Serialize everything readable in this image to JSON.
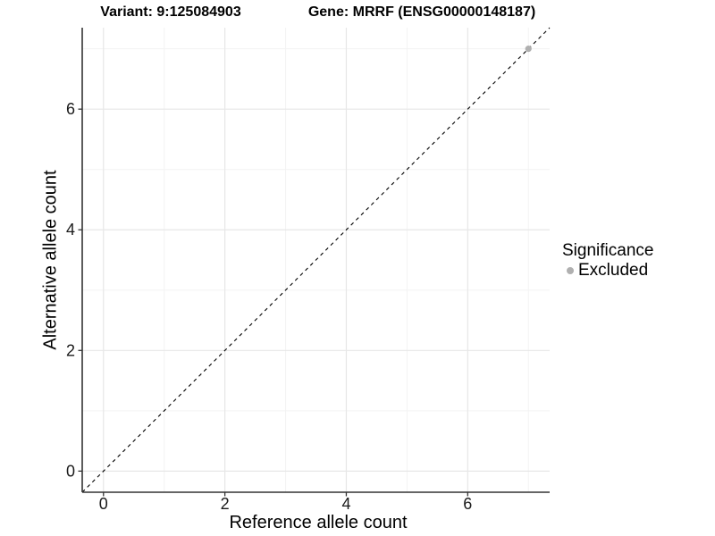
{
  "chart_data": {
    "type": "scatter",
    "title_left": "Variant: 9:125084903",
    "title_right": "Gene: MRRF (ENSG00000148187)",
    "xlabel": "Reference allele count",
    "ylabel": "Alternative allele count",
    "xlim": [
      -0.35,
      7.35
    ],
    "ylim": [
      -0.35,
      7.35
    ],
    "x_major_ticks": [
      0,
      2,
      4,
      6
    ],
    "y_major_ticks": [
      0,
      2,
      4,
      6
    ],
    "x_minor_ticks": [
      1,
      3,
      5,
      7
    ],
    "y_minor_ticks": [
      1,
      3,
      5,
      7
    ],
    "grid": "major+minor",
    "identity_line": {
      "style": "dashed",
      "color": "#000000",
      "slope": 1,
      "intercept": 0
    },
    "series": [
      {
        "name": "Excluded",
        "color": "#b0b0b0",
        "points": [
          {
            "x": 7,
            "y": 7
          }
        ]
      }
    ],
    "legend": {
      "title": "Significance",
      "position": "right",
      "entries": [
        {
          "label": "Excluded",
          "color": "#b0b0b0",
          "marker": "circle"
        }
      ]
    },
    "colors": {
      "grid_major": "#e7e7e7",
      "grid_minor": "#f3f3f3",
      "axis": "#333333",
      "tick_text": "#1a1a1a"
    }
  }
}
